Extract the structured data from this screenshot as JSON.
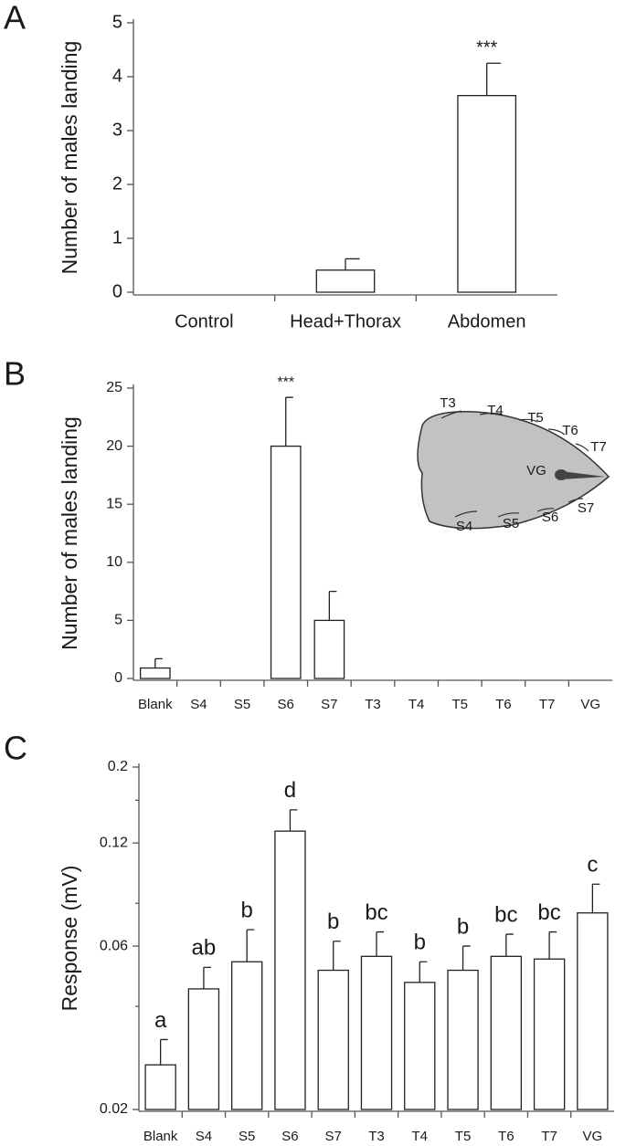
{
  "chart_data": [
    {
      "type": "bar",
      "label": "A",
      "ylabel": "Number of males landing",
      "categories": [
        "Control",
        "Head+Thorax",
        "Abdomen"
      ],
      "values": [
        0,
        0.41,
        3.65
      ],
      "errors": [
        null,
        0.21,
        0.6
      ],
      "annotations": [
        null,
        null,
        "***"
      ],
      "ylim": [
        0,
        5
      ],
      "yticks": [
        0,
        1,
        2,
        3,
        4,
        5
      ],
      "color": "#ffffff"
    },
    {
      "type": "bar",
      "label": "B",
      "ylabel": "Number of males landing",
      "categories": [
        "Blank",
        "S4",
        "S5",
        "S6",
        "S7",
        "T3",
        "T4",
        "T5",
        "T6",
        "T7",
        "VG"
      ],
      "values": [
        0.9,
        0,
        0,
        20,
        5,
        0,
        0,
        0,
        0,
        0,
        0
      ],
      "errors": [
        0.8,
        null,
        null,
        4.2,
        2.5,
        null,
        null,
        null,
        null,
        null,
        null
      ],
      "annotations": [
        null,
        null,
        null,
        "***",
        null,
        null,
        null,
        null,
        null,
        null,
        null
      ],
      "ylim": [
        0,
        25
      ],
      "yticks": [
        0,
        5,
        10,
        15,
        20,
        25
      ],
      "color": "#ffffff",
      "inset_labels": [
        "T3",
        "T4",
        "T5",
        "T6",
        "T7",
        "VG",
        "S4",
        "S5",
        "S6",
        "S7"
      ]
    },
    {
      "type": "bar",
      "label": "C",
      "ylabel": "Response (mV)",
      "log_scale": true,
      "categories": [
        "Blank",
        "S4",
        "S5",
        "S6",
        "S7",
        "T3",
        "T4",
        "T5",
        "T6",
        "T7",
        "VG"
      ],
      "values": [
        0.027,
        0.045,
        0.054,
        0.13,
        0.051,
        0.056,
        0.047,
        0.051,
        0.056,
        0.055,
        0.075
      ],
      "errors": [
        0.005,
        0.007,
        0.013,
        0.02,
        0.011,
        0.01,
        0.007,
        0.009,
        0.009,
        0.011,
        0.016
      ],
      "annotations": [
        "a",
        "ab",
        "b",
        "d",
        "b",
        "bc",
        "b",
        "b",
        "bc",
        "bc",
        "c"
      ],
      "ylim": [
        0.02,
        0.2
      ],
      "yticks": [
        0.02,
        0.06,
        0.12,
        0.2
      ],
      "yminorticks": [
        0.04,
        0.08,
        0.16
      ],
      "color": "#ffffff"
    }
  ]
}
